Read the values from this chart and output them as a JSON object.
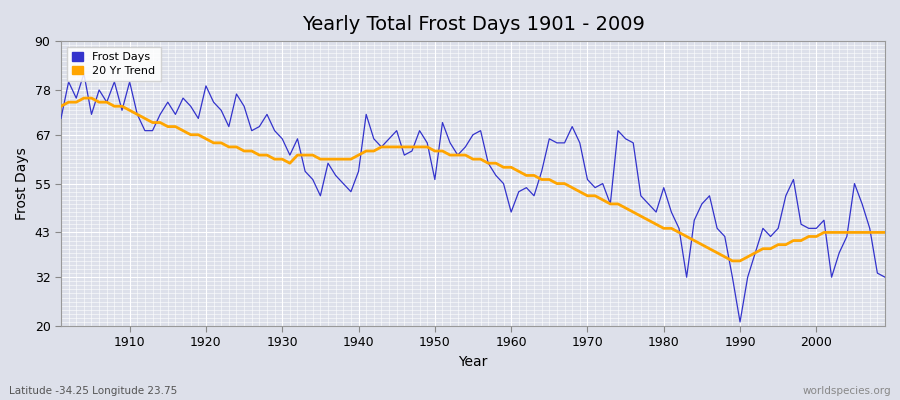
{
  "title": "Yearly Total Frost Days 1901 - 2009",
  "xlabel": "Year",
  "ylabel": "Frost Days",
  "lat_lon_label": "Latitude -34.25 Longitude 23.75",
  "watermark": "worldspecies.org",
  "ylim": [
    20,
    90
  ],
  "yticks": [
    20,
    32,
    43,
    55,
    67,
    78,
    90
  ],
  "xlim": [
    1901,
    2009
  ],
  "frost_color": "#3333cc",
  "trend_color": "#ffa500",
  "bg_color": "#dde0ea",
  "years": [
    1901,
    1902,
    1903,
    1904,
    1905,
    1906,
    1907,
    1908,
    1909,
    1910,
    1911,
    1912,
    1913,
    1914,
    1915,
    1916,
    1917,
    1918,
    1919,
    1920,
    1921,
    1922,
    1923,
    1924,
    1925,
    1926,
    1927,
    1928,
    1929,
    1930,
    1931,
    1932,
    1933,
    1934,
    1935,
    1936,
    1937,
    1938,
    1939,
    1940,
    1941,
    1942,
    1943,
    1944,
    1945,
    1946,
    1947,
    1948,
    1949,
    1950,
    1951,
    1952,
    1953,
    1954,
    1955,
    1956,
    1957,
    1958,
    1959,
    1960,
    1961,
    1962,
    1963,
    1964,
    1965,
    1966,
    1967,
    1968,
    1969,
    1970,
    1971,
    1972,
    1973,
    1974,
    1975,
    1976,
    1977,
    1978,
    1979,
    1980,
    1981,
    1982,
    1983,
    1984,
    1985,
    1986,
    1987,
    1988,
    1989,
    1990,
    1991,
    1992,
    1993,
    1994,
    1995,
    1996,
    1997,
    1998,
    1999,
    2000,
    2001,
    2002,
    2003,
    2004,
    2005,
    2006,
    2007,
    2008,
    2009
  ],
  "frost_days": [
    71,
    80,
    76,
    82,
    72,
    78,
    75,
    80,
    73,
    80,
    72,
    68,
    68,
    72,
    75,
    72,
    76,
    74,
    71,
    79,
    75,
    73,
    69,
    77,
    74,
    68,
    69,
    72,
    68,
    66,
    62,
    66,
    58,
    56,
    52,
    60,
    57,
    55,
    53,
    58,
    72,
    66,
    64,
    66,
    68,
    62,
    63,
    68,
    65,
    56,
    70,
    65,
    62,
    64,
    67,
    68,
    60,
    57,
    55,
    48,
    53,
    54,
    52,
    58,
    66,
    65,
    65,
    69,
    65,
    56,
    54,
    55,
    50,
    68,
    66,
    65,
    52,
    50,
    48,
    54,
    48,
    44,
    32,
    46,
    50,
    52,
    44,
    42,
    32,
    21,
    32,
    38,
    44,
    42,
    44,
    52,
    56,
    45,
    44,
    44,
    46,
    32,
    38,
    42,
    55,
    50,
    44,
    33,
    32
  ],
  "trend_days": [
    74,
    75,
    75,
    76,
    76,
    75,
    75,
    74,
    74,
    73,
    72,
    71,
    70,
    70,
    69,
    69,
    68,
    67,
    67,
    66,
    65,
    65,
    64,
    64,
    63,
    63,
    62,
    62,
    61,
    61,
    60,
    62,
    62,
    62,
    61,
    61,
    61,
    61,
    61,
    62,
    63,
    63,
    64,
    64,
    64,
    64,
    64,
    64,
    64,
    63,
    63,
    62,
    62,
    62,
    61,
    61,
    60,
    60,
    59,
    59,
    58,
    57,
    57,
    56,
    56,
    55,
    55,
    54,
    53,
    52,
    52,
    51,
    50,
    50,
    49,
    48,
    47,
    46,
    45,
    44,
    44,
    43,
    42,
    41,
    40,
    39,
    38,
    37,
    36,
    36,
    37,
    38,
    39,
    39,
    40,
    40,
    41,
    41,
    42,
    42,
    43,
    43,
    43,
    43,
    43,
    43,
    43,
    43,
    43
  ],
  "title_fontsize": 14,
  "axis_label_fontsize": 10,
  "tick_fontsize": 9,
  "legend_fontsize": 8
}
